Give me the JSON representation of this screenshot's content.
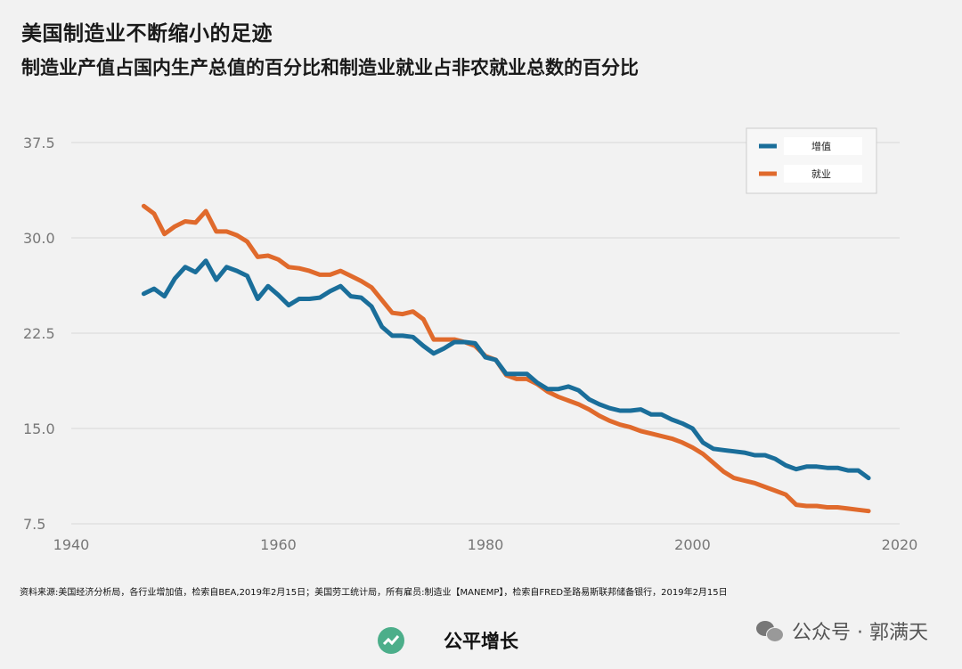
{
  "title": "美国制造业不断缩小的足迹",
  "subtitle": "制造业产值占国内生产总值的百分比和制造业就业占非农就业总数的百分比",
  "source": "资料来源:美国经济分析局，各行业增加值，检索自BEA,2019年2月15日；美国劳工统计局，所有雇员:制造业【MANEMP】，检索自FRED圣路易斯联邦储备银行，2019年2月15日",
  "watermark": "公众号 · 郭满天",
  "brand": "公平增长",
  "colors": {
    "output": "#1a6e9a",
    "employment": "#e06a2c",
    "grid": "#d8d8d8",
    "axis_text": "#777777"
  },
  "chart_data": {
    "type": "line",
    "title": "美国制造业不断缩小的足迹",
    "xlabel": "",
    "ylabel": "",
    "xlim": [
      1940,
      2020
    ],
    "ylim": [
      7.5,
      37.5
    ],
    "x_ticks": [
      "1940",
      "1960",
      "1980",
      "2000",
      "2020"
    ],
    "y_ticks": [
      "37.5",
      "30.0",
      "22.5",
      "15.0",
      "7.5"
    ],
    "legend": {
      "placement": "top-right",
      "entries": [
        "增值",
        "就业"
      ]
    },
    "series": [
      {
        "name": "增值",
        "x": [
          1947,
          1948,
          1949,
          1950,
          1951,
          1952,
          1953,
          1954,
          1955,
          1956,
          1957,
          1958,
          1959,
          1960,
          1961,
          1962,
          1963,
          1964,
          1965,
          1966,
          1967,
          1968,
          1969,
          1970,
          1971,
          1972,
          1973,
          1974,
          1975,
          1976,
          1977,
          1978,
          1979,
          1980,
          1981,
          1982,
          1983,
          1984,
          1985,
          1986,
          1987,
          1988,
          1989,
          1990,
          1991,
          1992,
          1993,
          1994,
          1995,
          1996,
          1997,
          1998,
          1999,
          2000,
          2001,
          2002,
          2003,
          2004,
          2005,
          2006,
          2007,
          2008,
          2009,
          2010,
          2011,
          2012,
          2013,
          2014,
          2015,
          2016,
          2017
        ],
        "values": [
          25.6,
          26.0,
          25.4,
          26.8,
          27.7,
          27.3,
          28.2,
          26.7,
          27.7,
          27.4,
          27.0,
          25.2,
          26.2,
          25.5,
          24.7,
          25.2,
          25.2,
          25.3,
          25.8,
          26.2,
          25.4,
          25.3,
          24.6,
          23.0,
          22.3,
          22.3,
          22.2,
          21.5,
          20.9,
          21.3,
          21.8,
          21.8,
          21.7,
          20.6,
          20.4,
          19.3,
          19.3,
          19.3,
          18.6,
          18.1,
          18.1,
          18.3,
          18.0,
          17.3,
          16.9,
          16.6,
          16.4,
          16.4,
          16.5,
          16.1,
          16.1,
          15.7,
          15.4,
          15.0,
          13.9,
          13.4,
          13.3,
          13.2,
          13.1,
          12.9,
          12.9,
          12.6,
          12.1,
          11.8,
          12.0,
          12.0,
          11.9,
          11.9,
          11.7,
          11.7,
          11.1
        ]
      },
      {
        "name": "就业",
        "x": [
          1947,
          1948,
          1949,
          1950,
          1951,
          1952,
          1953,
          1954,
          1955,
          1956,
          1957,
          1958,
          1959,
          1960,
          1961,
          1962,
          1963,
          1964,
          1965,
          1966,
          1967,
          1968,
          1969,
          1970,
          1971,
          1972,
          1973,
          1974,
          1975,
          1976,
          1977,
          1978,
          1979,
          1980,
          1981,
          1982,
          1983,
          1984,
          1985,
          1986,
          1987,
          1988,
          1989,
          1990,
          1991,
          1992,
          1993,
          1994,
          1995,
          1996,
          1997,
          1998,
          1999,
          2000,
          2001,
          2002,
          2003,
          2004,
          2005,
          2006,
          2007,
          2008,
          2009,
          2010,
          2011,
          2012,
          2013,
          2014,
          2015,
          2016,
          2017
        ],
        "values": [
          32.5,
          31.9,
          30.3,
          30.9,
          31.3,
          31.2,
          32.1,
          30.5,
          30.5,
          30.2,
          29.7,
          28.5,
          28.6,
          28.3,
          27.7,
          27.6,
          27.4,
          27.1,
          27.1,
          27.4,
          27.0,
          26.6,
          26.1,
          25.1,
          24.1,
          24.0,
          24.2,
          23.6,
          22.0,
          22.0,
          22.0,
          21.8,
          21.5,
          20.7,
          20.4,
          19.2,
          18.9,
          18.9,
          18.5,
          17.9,
          17.5,
          17.2,
          16.9,
          16.5,
          16.0,
          15.6,
          15.3,
          15.1,
          14.8,
          14.6,
          14.4,
          14.2,
          13.9,
          13.5,
          13.0,
          12.3,
          11.6,
          11.1,
          10.9,
          10.7,
          10.4,
          10.1,
          9.8,
          9.0,
          8.9,
          8.9,
          8.8,
          8.8,
          8.7,
          8.6,
          8.5
        ]
      }
    ]
  }
}
